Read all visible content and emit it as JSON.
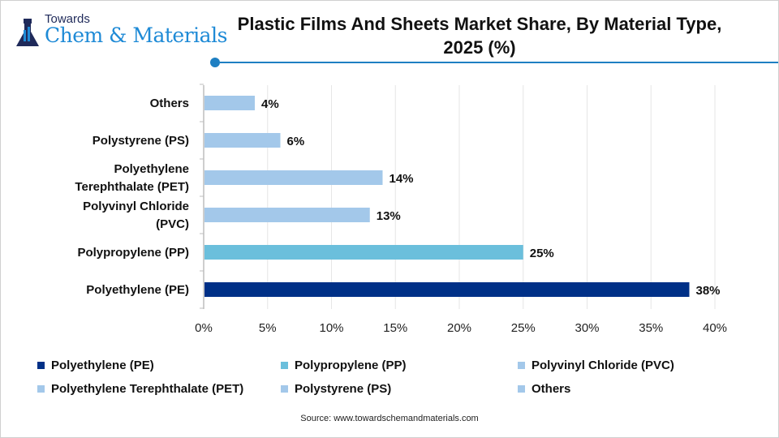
{
  "logo": {
    "small": "Towards",
    "big": "Chem & Materials"
  },
  "chart_data": {
    "type": "bar",
    "orientation": "horizontal",
    "title": "Plastic Films And Sheets Market Share, By Material Type, 2025 (%)",
    "categories": [
      "Polyethylene (PE)",
      "Polypropylene (PP)",
      "Polyvinyl Chloride (PVC)",
      "Polyethylene Terephthalate (PET)",
      "Polystyrene (PS)",
      "Others"
    ],
    "category_label_lines": [
      [
        "Polyethylene (PE)"
      ],
      [
        "Polypropylene (PP)"
      ],
      [
        "Polyvinyl Chloride",
        "(PVC)"
      ],
      [
        "Polyethylene",
        "Terephthalate (PET)"
      ],
      [
        "Polystyrene (PS)"
      ],
      [
        "Others"
      ]
    ],
    "values": [
      38,
      25,
      13,
      14,
      6,
      4
    ],
    "data_labels": [
      "38%",
      "25%",
      "13%",
      "14%",
      "6%",
      "4%"
    ],
    "colors": [
      "#003087",
      "#6bbfdc",
      "#a3c8ea",
      "#a3c8ea",
      "#a3c8ea",
      "#a3c8ea"
    ],
    "xlim": [
      0,
      40
    ],
    "xticks": [
      "0%",
      "5%",
      "10%",
      "15%",
      "20%",
      "25%",
      "30%",
      "35%",
      "40%"
    ],
    "grid": true,
    "legend_position": "bottom"
  },
  "source": "Source: www.towardschemandmaterials.com"
}
